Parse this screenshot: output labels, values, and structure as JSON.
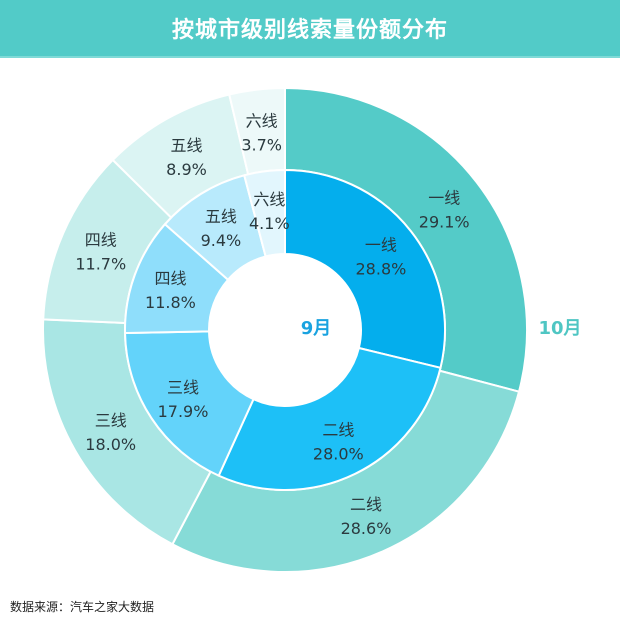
{
  "header": {
    "title": "按城市级别线索量份额分布"
  },
  "source": {
    "text": "数据来源：汽车之家大数据"
  },
  "colors": {
    "header_bg": "#52cbc8",
    "month9_label": "#1aa3e0",
    "month10_label": "#4fc6c3"
  },
  "chart_data": {
    "type": "pie",
    "title": "按城市级别线索量份额分布",
    "subtype": "nested-donut",
    "categories": [
      "一线",
      "二线",
      "三线",
      "四线",
      "五线",
      "六线"
    ],
    "series": [
      {
        "name": "9月",
        "ring": "inner",
        "values": [
          28.8,
          28.0,
          17.9,
          11.8,
          9.4,
          4.1
        ],
        "colors": [
          "#04aeed",
          "#1dc0f7",
          "#63d3fa",
          "#8fdefb",
          "#b8eafc",
          "#e2f6fd"
        ]
      },
      {
        "name": "10月",
        "ring": "outer",
        "values": [
          29.1,
          28.6,
          18.0,
          11.7,
          8.9,
          3.7
        ],
        "colors": [
          "#54cbc8",
          "#86dbd7",
          "#a9e6e4",
          "#c6eeec",
          "#dbf4f3",
          "#edf9f9"
        ]
      }
    ],
    "labels": {
      "inner": [
        "一线|28.8%",
        "二线|28.0%",
        "三线|17.9%",
        "四线|11.8%",
        "五线|9.4%",
        "六线|4.1%"
      ],
      "outer": [
        "一线|29.1%",
        "二线|28.6%",
        "三线|18.0%",
        "四线|11.7%",
        "五线|8.9%",
        "六线|3.7%"
      ]
    },
    "ring_labels": {
      "inner": "9月",
      "outer": "10月"
    },
    "source": "数据来源：汽车之家大数据"
  }
}
